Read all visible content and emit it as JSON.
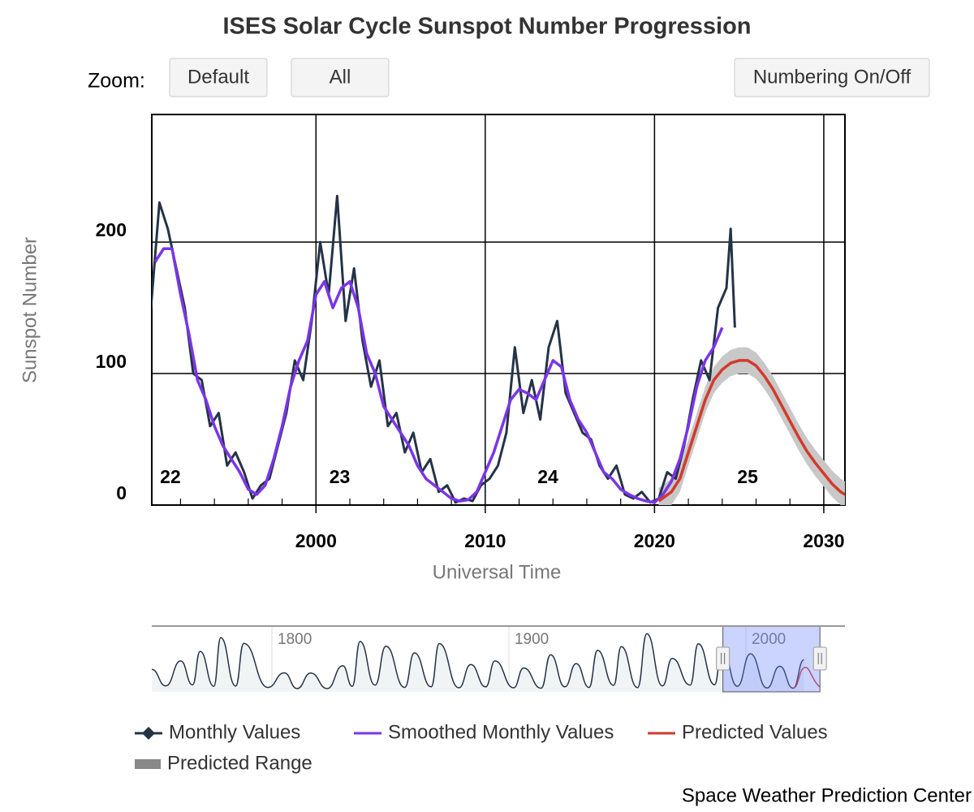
{
  "chart_data": {
    "type": "line",
    "title": "ISES Solar Cycle Sunspot Number Progression",
    "zoom_label": "Zoom:",
    "buttons": [
      "Default",
      "All",
      "Numbering On/Off"
    ],
    "x_label": "Universal Time",
    "y_label": "Sunspot Number",
    "credit": "Space Weather Prediction Center",
    "xlim": [
      1990.3,
      2031.25
    ],
    "ylim": [
      0,
      297
    ],
    "xticks": [
      2000,
      2010,
      2020,
      2030
    ],
    "xminorticks": [
      1992,
      1994,
      1996,
      1998,
      2002,
      2004,
      2006,
      2008,
      2012,
      2014,
      2016,
      2018,
      2022,
      2024,
      2026,
      2028
    ],
    "yticks": [
      0,
      100,
      200
    ],
    "grid": true,
    "annotations": [
      {
        "label": "22",
        "x": 1991.4
      },
      {
        "label": "23",
        "x": 2001.4
      },
      {
        "label": "24",
        "x": 2013.7
      },
      {
        "label": "25",
        "x": 2025.5
      }
    ],
    "series": [
      {
        "name": "Monthly Values",
        "color": "#253347",
        "x": [
          1990.25,
          1990.75,
          1991.25,
          1991.75,
          1992.25,
          1992.75,
          1993.25,
          1993.75,
          1994.25,
          1994.75,
          1995.25,
          1995.75,
          1996.25,
          1996.75,
          1997.25,
          1997.75,
          1998.25,
          1998.75,
          1999.25,
          1999.75,
          2000.25,
          2000.75,
          2001.25,
          2001.75,
          2002.25,
          2002.75,
          2003.25,
          2003.75,
          2004.25,
          2004.75,
          2005.25,
          2005.75,
          2006.25,
          2006.75,
          2007.25,
          2007.75,
          2008.25,
          2008.75,
          2009.25,
          2009.75,
          2010.25,
          2010.75,
          2011.25,
          2011.75,
          2012.25,
          2012.75,
          2013.25,
          2013.75,
          2014.25,
          2014.75,
          2015.25,
          2015.75,
          2016.25,
          2016.75,
          2017.25,
          2017.75,
          2018.25,
          2018.75,
          2019.25,
          2019.75,
          2020.25,
          2020.75,
          2021.25,
          2021.75,
          2022.25,
          2022.75,
          2023.25,
          2023.75,
          2024.25,
          2024.5,
          2024.75
        ],
        "values": [
          150,
          230,
          210,
          180,
          150,
          100,
          95,
          60,
          70,
          30,
          40,
          25,
          5,
          15,
          20,
          45,
          70,
          110,
          95,
          140,
          200,
          160,
          235,
          140,
          180,
          125,
          90,
          110,
          60,
          70,
          40,
          55,
          25,
          35,
          10,
          15,
          2,
          5,
          3,
          15,
          20,
          30,
          55,
          120,
          70,
          95,
          65,
          120,
          140,
          85,
          70,
          55,
          50,
          30,
          20,
          30,
          8,
          5,
          10,
          2,
          5,
          25,
          20,
          45,
          80,
          110,
          95,
          150,
          165,
          210,
          135
        ]
      },
      {
        "name": "Smoothed Monthly Values",
        "color": "#7b35e8",
        "x": [
          1990.5,
          1991,
          1991.5,
          1992,
          1992.5,
          1993,
          1993.5,
          1994,
          1994.5,
          1995,
          1995.5,
          1996,
          1996.5,
          1997,
          1997.5,
          1998,
          1998.5,
          1999,
          1999.5,
          2000,
          2000.5,
          2001,
          2001.5,
          2002,
          2002.5,
          2003,
          2003.5,
          2004,
          2004.5,
          2005,
          2005.5,
          2006,
          2006.5,
          2007,
          2007.5,
          2008,
          2008.5,
          2009,
          2009.5,
          2010,
          2010.5,
          2011,
          2011.5,
          2012,
          2012.5,
          2013,
          2013.5,
          2014,
          2014.5,
          2015,
          2015.5,
          2016,
          2016.5,
          2017,
          2017.5,
          2018,
          2018.5,
          2019,
          2019.5,
          2020,
          2020.5,
          2021,
          2021.5,
          2022,
          2022.5,
          2023,
          2023.5,
          2024
        ],
        "values": [
          185,
          195,
          195,
          160,
          130,
          95,
          80,
          60,
          45,
          35,
          25,
          12,
          8,
          15,
          35,
          60,
          90,
          110,
          125,
          160,
          170,
          150,
          165,
          170,
          150,
          115,
          100,
          75,
          65,
          55,
          45,
          30,
          20,
          15,
          10,
          5,
          3,
          4,
          10,
          25,
          40,
          60,
          80,
          88,
          85,
          80,
          95,
          110,
          105,
          80,
          65,
          55,
          40,
          25,
          20,
          12,
          8,
          5,
          3,
          2,
          8,
          18,
          35,
          60,
          90,
          110,
          120,
          135
        ]
      },
      {
        "name": "Predicted Values",
        "color": "#d33a2c",
        "x": [
          2020.25,
          2021,
          2021.5,
          2022,
          2022.5,
          2023,
          2023.5,
          2024,
          2024.5,
          2025,
          2025.5,
          2026,
          2026.5,
          2027,
          2027.5,
          2028,
          2028.5,
          2029,
          2029.5,
          2030,
          2030.5,
          2031,
          2031.25
        ],
        "values": [
          3,
          10,
          20,
          40,
          60,
          80,
          95,
          103,
          108,
          110,
          110,
          106,
          98,
          88,
          76,
          64,
          52,
          41,
          32,
          24,
          16,
          10,
          8
        ]
      },
      {
        "name": "Predicted Range",
        "color": "#c8c8c8",
        "x": [
          2020.25,
          2021,
          2021.5,
          2022,
          2022.5,
          2023,
          2023.5,
          2024,
          2024.5,
          2025,
          2025.5,
          2026,
          2026.5,
          2027,
          2027.5,
          2028,
          2028.5,
          2029,
          2029.5,
          2030,
          2030.5,
          2031,
          2031.25
        ],
        "low": [
          0,
          0,
          10,
          30,
          50,
          70,
          85,
          93,
          98,
          100,
          100,
          96,
          88,
          78,
          66,
          54,
          42,
          31,
          22,
          14,
          6,
          0,
          0
        ],
        "high": [
          13,
          20,
          30,
          50,
          70,
          90,
          105,
          113,
          118,
          120,
          120,
          116,
          108,
          98,
          86,
          74,
          62,
          51,
          42,
          34,
          26,
          20,
          18
        ]
      }
    ],
    "navigator": {
      "xlim": [
        1749.3,
        2041.8
      ],
      "ylim": [
        0,
        300
      ],
      "xticks": [
        1800,
        1900,
        2000
      ],
      "x": [
        1749.3,
        1755.2,
        1761.5,
        1766.5,
        1769.7,
        1775.5,
        1778.4,
        1784.7,
        1788.1,
        1798.3,
        1805.2,
        1810.6,
        1816.4,
        1823.3,
        1829.9,
        1833.9,
        1837.2,
        1843.5,
        1848.1,
        1856,
        1860.1,
        1867.2,
        1870.6,
        1878.9,
        1883.9,
        1890.2,
        1894.1,
        1902,
        1906.2,
        1913.6,
        1917.6,
        1923.6,
        1928.4,
        1933.8,
        1937.4,
        1944.2,
        1947.4,
        1954.3,
        1958.2,
        1964.8,
        1968.9,
        1976.5,
        1979.9,
        1986.8,
        1989.9,
        1996.4,
        2001.9,
        2008.9,
        2014.3,
        2019.9,
        2024.5
      ],
      "values": [
        100,
        14,
        144,
        19,
        194,
        12,
        265,
        13,
        235,
        6,
        82,
        0,
        81,
        0,
        119,
        12,
        245,
        18,
        220,
        6,
        186,
        9,
        234,
        4,
        125,
        9,
        144,
        4,
        107,
        2,
        176,
        9,
        130,
        6,
        199,
        17,
        218,
        5,
        285,
        14,
        157,
        18,
        233,
        20,
        213,
        12,
        181,
        3,
        116,
        2,
        150
      ]
    }
  }
}
